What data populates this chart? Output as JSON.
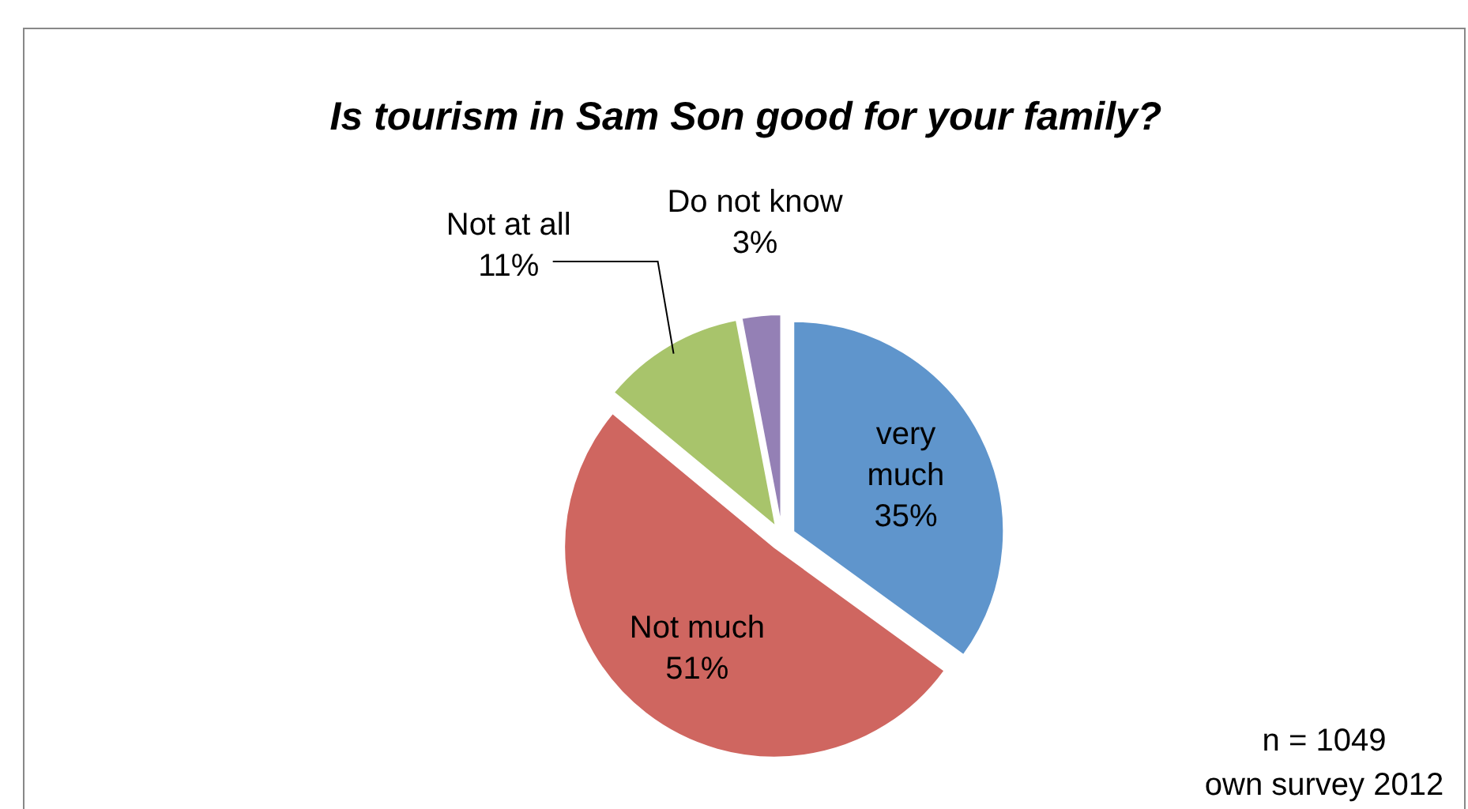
{
  "chart_data": {
    "type": "pie",
    "title": "Is tourism in Sam Son good for your family?",
    "categories": [
      "very much",
      "Not much",
      "Not at all",
      "Do not know"
    ],
    "values": [
      35,
      51,
      11,
      3
    ],
    "colors": [
      "#5f95cc",
      "#cf6660",
      "#a8c46b",
      "#9480b5"
    ],
    "value_labels": [
      "35%",
      "51%",
      "11%",
      "3%"
    ],
    "annotations": [
      "n = 1049",
      "own survey 2012"
    ]
  }
}
